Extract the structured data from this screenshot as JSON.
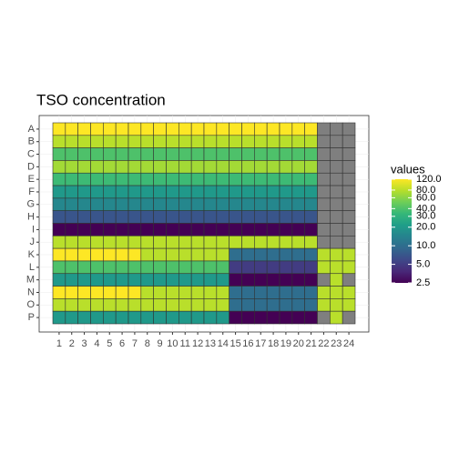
{
  "chart_data": {
    "type": "heatmap",
    "title": "TSO concentration",
    "x_categories": [
      "1",
      "2",
      "3",
      "4",
      "5",
      "6",
      "7",
      "8",
      "9",
      "10",
      "11",
      "12",
      "13",
      "14",
      "15",
      "16",
      "17",
      "18",
      "19",
      "20",
      "21",
      "22",
      "23",
      "24"
    ],
    "y_categories": [
      "A",
      "B",
      "C",
      "D",
      "E",
      "F",
      "G",
      "H",
      "I",
      "J",
      "K",
      "L",
      "M",
      "N",
      "O",
      "P"
    ],
    "values": [
      [
        120,
        120,
        120,
        120,
        120,
        120,
        120,
        120,
        120,
        120,
        120,
        120,
        120,
        120,
        120,
        120,
        120,
        120,
        120,
        120,
        120,
        null,
        null,
        null
      ],
      [
        80,
        80,
        80,
        80,
        80,
        80,
        80,
        80,
        80,
        80,
        80,
        80,
        80,
        80,
        80,
        80,
        80,
        80,
        80,
        80,
        80,
        null,
        null,
        null
      ],
      [
        40,
        40,
        40,
        40,
        40,
        40,
        40,
        40,
        40,
        40,
        40,
        40,
        40,
        40,
        40,
        40,
        40,
        40,
        40,
        40,
        40,
        null,
        null,
        null
      ],
      [
        70,
        70,
        70,
        70,
        70,
        70,
        70,
        70,
        70,
        70,
        70,
        70,
        70,
        70,
        70,
        70,
        70,
        70,
        70,
        70,
        70,
        null,
        null,
        null
      ],
      [
        35,
        35,
        35,
        35,
        35,
        35,
        35,
        35,
        35,
        35,
        35,
        35,
        35,
        35,
        35,
        35,
        35,
        35,
        35,
        35,
        35,
        null,
        null,
        null
      ],
      [
        20,
        20,
        20,
        20,
        20,
        20,
        20,
        20,
        20,
        20,
        20,
        20,
        20,
        20,
        20,
        20,
        20,
        20,
        20,
        20,
        20,
        null,
        null,
        null
      ],
      [
        15,
        15,
        15,
        15,
        15,
        15,
        15,
        15,
        15,
        15,
        15,
        15,
        15,
        15,
        15,
        15,
        15,
        15,
        15,
        15,
        15,
        null,
        null,
        null
      ],
      [
        7,
        7,
        7,
        7,
        7,
        7,
        7,
        7,
        7,
        7,
        7,
        7,
        7,
        7,
        7,
        7,
        7,
        7,
        7,
        7,
        7,
        null,
        null,
        null
      ],
      [
        2.5,
        2.5,
        2.5,
        2.5,
        2.5,
        2.5,
        2.5,
        2.5,
        2.5,
        2.5,
        2.5,
        2.5,
        2.5,
        2.5,
        2.5,
        2.5,
        2.5,
        2.5,
        2.5,
        2.5,
        2.5,
        null,
        null,
        null
      ],
      [
        80,
        80,
        80,
        80,
        80,
        80,
        80,
        80,
        80,
        80,
        80,
        80,
        80,
        80,
        80,
        80,
        80,
        80,
        80,
        80,
        80,
        null,
        null,
        null
      ],
      [
        120,
        120,
        120,
        120,
        120,
        120,
        120,
        80,
        80,
        80,
        80,
        80,
        80,
        80,
        10,
        10,
        10,
        10,
        10,
        10,
        10,
        80,
        80,
        80
      ],
      [
        40,
        40,
        40,
        40,
        40,
        40,
        40,
        40,
        40,
        40,
        40,
        40,
        40,
        40,
        5,
        5,
        5,
        5,
        5,
        5,
        5,
        80,
        80,
        80
      ],
      [
        20,
        20,
        20,
        20,
        20,
        20,
        20,
        20,
        20,
        20,
        20,
        20,
        20,
        20,
        2.5,
        2.5,
        2.5,
        2.5,
        2.5,
        2.5,
        2.5,
        null,
        80,
        null
      ],
      [
        120,
        120,
        120,
        120,
        120,
        120,
        120,
        80,
        80,
        80,
        80,
        80,
        80,
        80,
        10,
        10,
        10,
        10,
        10,
        10,
        10,
        80,
        80,
        80
      ],
      [
        80,
        80,
        80,
        80,
        80,
        80,
        80,
        80,
        80,
        80,
        80,
        80,
        80,
        80,
        10,
        10,
        10,
        10,
        10,
        10,
        10,
        80,
        80,
        80
      ],
      [
        20,
        20,
        20,
        20,
        20,
        20,
        20,
        20,
        20,
        20,
        20,
        20,
        20,
        20,
        2.5,
        2.5,
        2.5,
        2.5,
        2.5,
        2.5,
        2.5,
        null,
        80,
        null
      ]
    ],
    "na_color": "#7f7f7f",
    "legend_title": "values",
    "fill_log": true,
    "fill_lim": [
      2.5,
      120
    ],
    "fill_ticks": [
      {
        "value": 2.5,
        "label": "2.5"
      },
      {
        "value": 5,
        "label": "5.0"
      },
      {
        "value": 10,
        "label": "10.0"
      },
      {
        "value": 20,
        "label": "20.0"
      },
      {
        "value": 30,
        "label": "30.0"
      },
      {
        "value": 40,
        "label": "40.0"
      },
      {
        "value": 60,
        "label": "60.0"
      },
      {
        "value": 80,
        "label": "80.0"
      },
      {
        "value": 120,
        "label": "120.0"
      }
    ],
    "palette": [
      "#440154",
      "#482878",
      "#3e4989",
      "#31688e",
      "#26828e",
      "#1f9e89",
      "#35b779",
      "#6ece58",
      "#b5de2b",
      "#fde725"
    ]
  }
}
